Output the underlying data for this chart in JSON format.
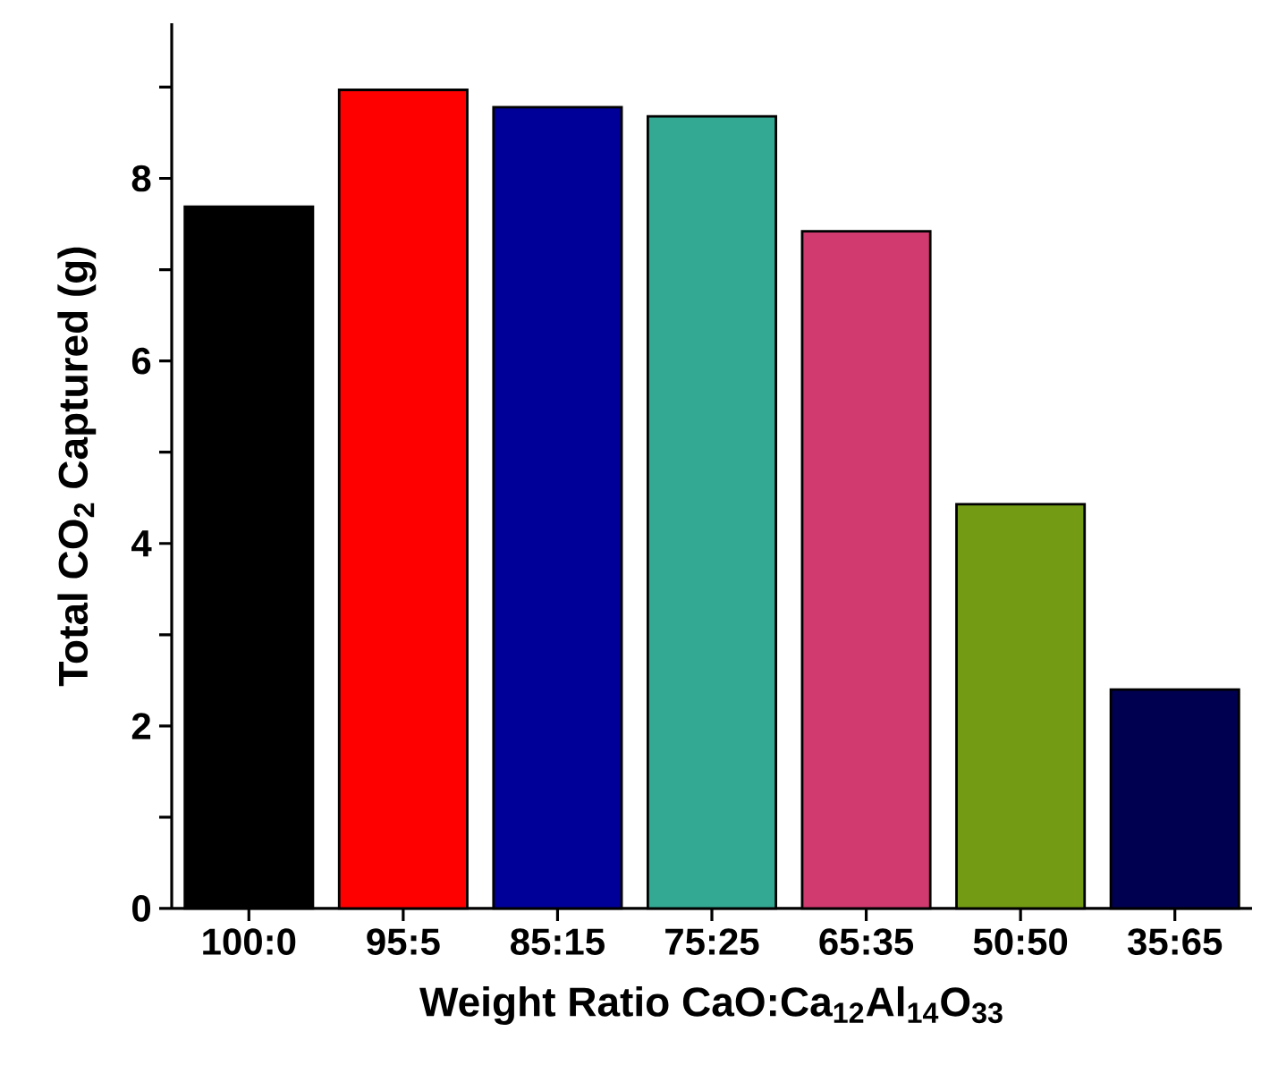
{
  "chart_data": {
    "type": "bar",
    "xlabel": "Weight Ratio CaO:Ca$_{12}$Al$_{14}$O$_{33}$",
    "ylabel": "Total CO$_{2}$ Captured (g)",
    "categories": [
      "100:0",
      "95:5",
      "85:15",
      "75:25",
      "65:35",
      "50:50",
      "35:65"
    ],
    "values": [
      7.69,
      8.97,
      8.78,
      8.68,
      7.42,
      4.43,
      2.4
    ],
    "colors": [
      "#000000",
      "#ff0000",
      "#000099",
      "#33a994",
      "#d13a6f",
      "#739c14",
      "#000050"
    ],
    "ylim": [
      0,
      9.7
    ],
    "yticks": [
      0,
      {
        "value": 1,
        "label": null
      },
      2,
      {
        "value": 3,
        "label": null
      },
      4,
      {
        "value": 5,
        "label": null
      },
      6,
      {
        "value": 7,
        "label": null
      },
      8,
      {
        "value": 9,
        "label": null
      }
    ],
    "grid": false
  }
}
